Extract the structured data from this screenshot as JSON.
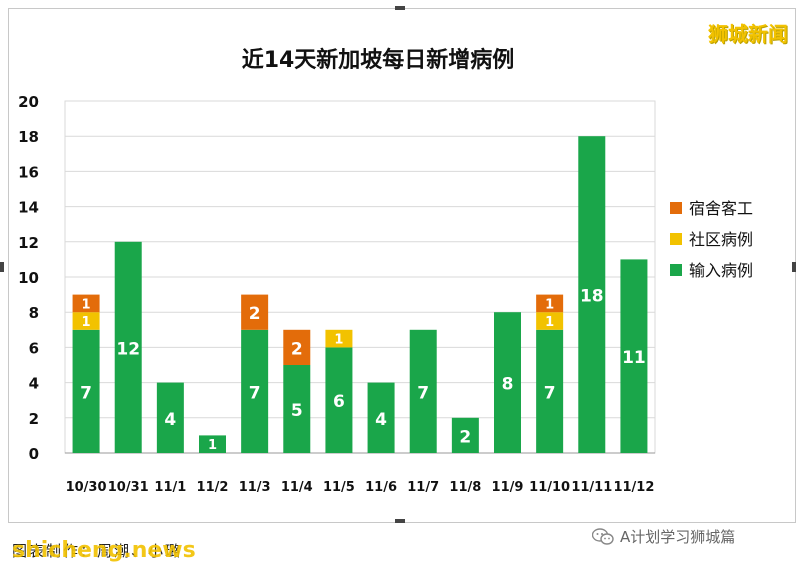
{
  "watermark_top": "狮城新闻",
  "caption": "图表制作：周潮、小璐",
  "site_watermark": "shicheng.news",
  "wechat_label": "A计划学习狮城篇",
  "wechat_icon": "wechat-icon",
  "colors": {
    "import": "#1aa64a",
    "community": "#f2c200",
    "dorm": "#e36c0a"
  },
  "chart_data": {
    "type": "bar",
    "stacked": true,
    "title": "近14天新加坡每日新增病例",
    "categories": [
      "10/30",
      "10/31",
      "11/1",
      "11/2",
      "11/3",
      "11/4",
      "11/5",
      "11/6",
      "11/7",
      "11/8",
      "11/9",
      "11/10",
      "11/11",
      "11/12"
    ],
    "series": [
      {
        "name": "输入病例",
        "color": "#1aa64a",
        "values": [
          7,
          12,
          4,
          1,
          7,
          5,
          6,
          4,
          7,
          2,
          8,
          7,
          18,
          11
        ]
      },
      {
        "name": "社区病例",
        "color": "#f2c200",
        "values": [
          1,
          0,
          0,
          0,
          0,
          0,
          1,
          0,
          0,
          0,
          0,
          1,
          0,
          0
        ]
      },
      {
        "name": "宿舍客工",
        "color": "#e36c0a",
        "values": [
          1,
          0,
          0,
          0,
          2,
          2,
          0,
          0,
          0,
          0,
          0,
          1,
          0,
          0
        ]
      }
    ],
    "legend": [
      "宿舍客工",
      "社区病例",
      "输入病例"
    ],
    "legend_position": "right",
    "ylim": [
      0,
      20
    ],
    "yticks": [
      0,
      2,
      4,
      6,
      8,
      10,
      12,
      14,
      16,
      18,
      20
    ],
    "grid": true
  }
}
